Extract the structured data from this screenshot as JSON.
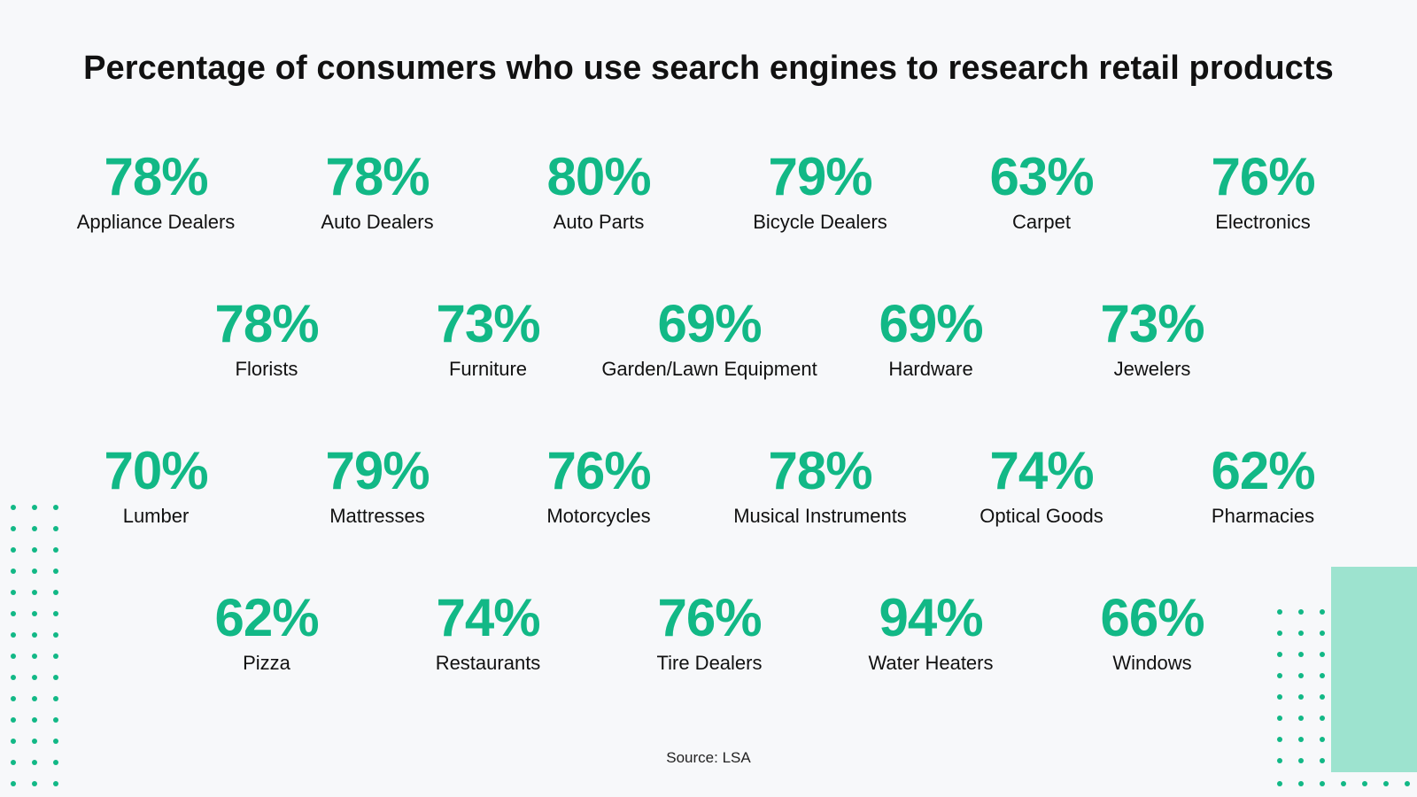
{
  "chart_data": {
    "type": "table",
    "title": "Percentage of consumers who use search engines to research retail products",
    "unit": "%",
    "categories": [
      "Appliance Dealers",
      "Auto Dealers",
      "Auto Parts",
      "Bicycle Dealers",
      "Carpet",
      "Electronics",
      "Florists",
      "Furniture",
      "Garden/Lawn Equipment",
      "Hardware",
      "Jewelers",
      "Lumber",
      "Mattresses",
      "Motorcycles",
      "Musical Instruments",
      "Optical Goods",
      "Pharmacies",
      "Pizza",
      "Restaurants",
      "Tire Dealers",
      "Water Heaters",
      "Windows"
    ],
    "values": [
      78,
      78,
      80,
      79,
      63,
      76,
      78,
      73,
      69,
      69,
      73,
      70,
      79,
      76,
      78,
      74,
      62,
      62,
      74,
      76,
      94,
      66
    ],
    "rows": [
      6,
      5,
      6,
      5
    ],
    "source": "Source: LSA"
  },
  "colors": {
    "accent": "#12b886",
    "accent_light": "#9de3cf",
    "background": "#f7f8fa",
    "text": "#111111"
  }
}
